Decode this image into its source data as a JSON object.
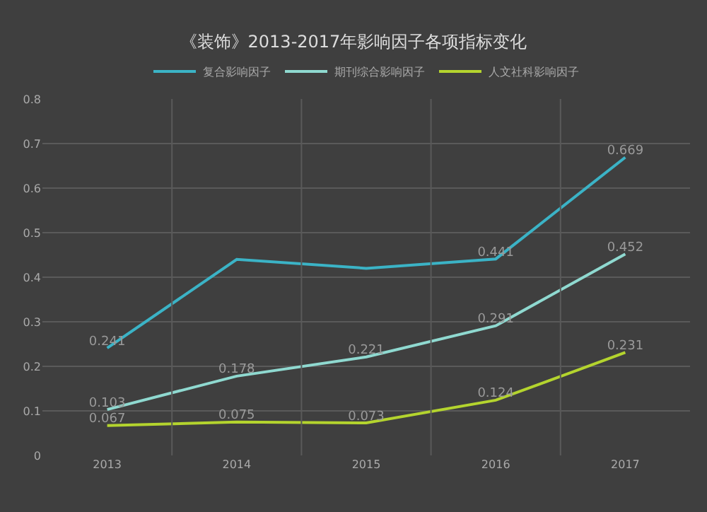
{
  "chart_data": {
    "type": "line",
    "title": "《装饰》2013-2017年影响因子各项指标变化",
    "categories": [
      "2013",
      "2014",
      "2015",
      "2016",
      "2017"
    ],
    "series": [
      {
        "name": "复合影响因子",
        "color": "#3bb3c6",
        "values": [
          0.241,
          0.44,
          0.42,
          0.441,
          0.669
        ],
        "value_labels": [
          "0.241",
          null,
          null,
          "0.441",
          "0.669"
        ]
      },
      {
        "name": "期刊综合影响因子",
        "color": "#8fd9d0",
        "values": [
          0.103,
          0.178,
          0.221,
          0.291,
          0.452
        ],
        "value_labels": [
          "0.103",
          "0.178",
          "0.221",
          "0.291",
          "0.452"
        ]
      },
      {
        "name": "人文社科影响因子",
        "color": "#b4d42e",
        "values": [
          0.067,
          0.075,
          0.073,
          0.124,
          0.231
        ],
        "value_labels": [
          "0.067",
          "0.075",
          "0.073",
          "0.124",
          "0.231"
        ]
      }
    ],
    "ylim": [
      0,
      0.8
    ],
    "yticks": [
      0,
      0.1,
      0.2,
      0.3,
      0.4,
      0.5,
      0.6,
      0.7,
      0.8
    ],
    "grid": true,
    "legend": "top",
    "marker": "none",
    "line_style": "solid"
  }
}
